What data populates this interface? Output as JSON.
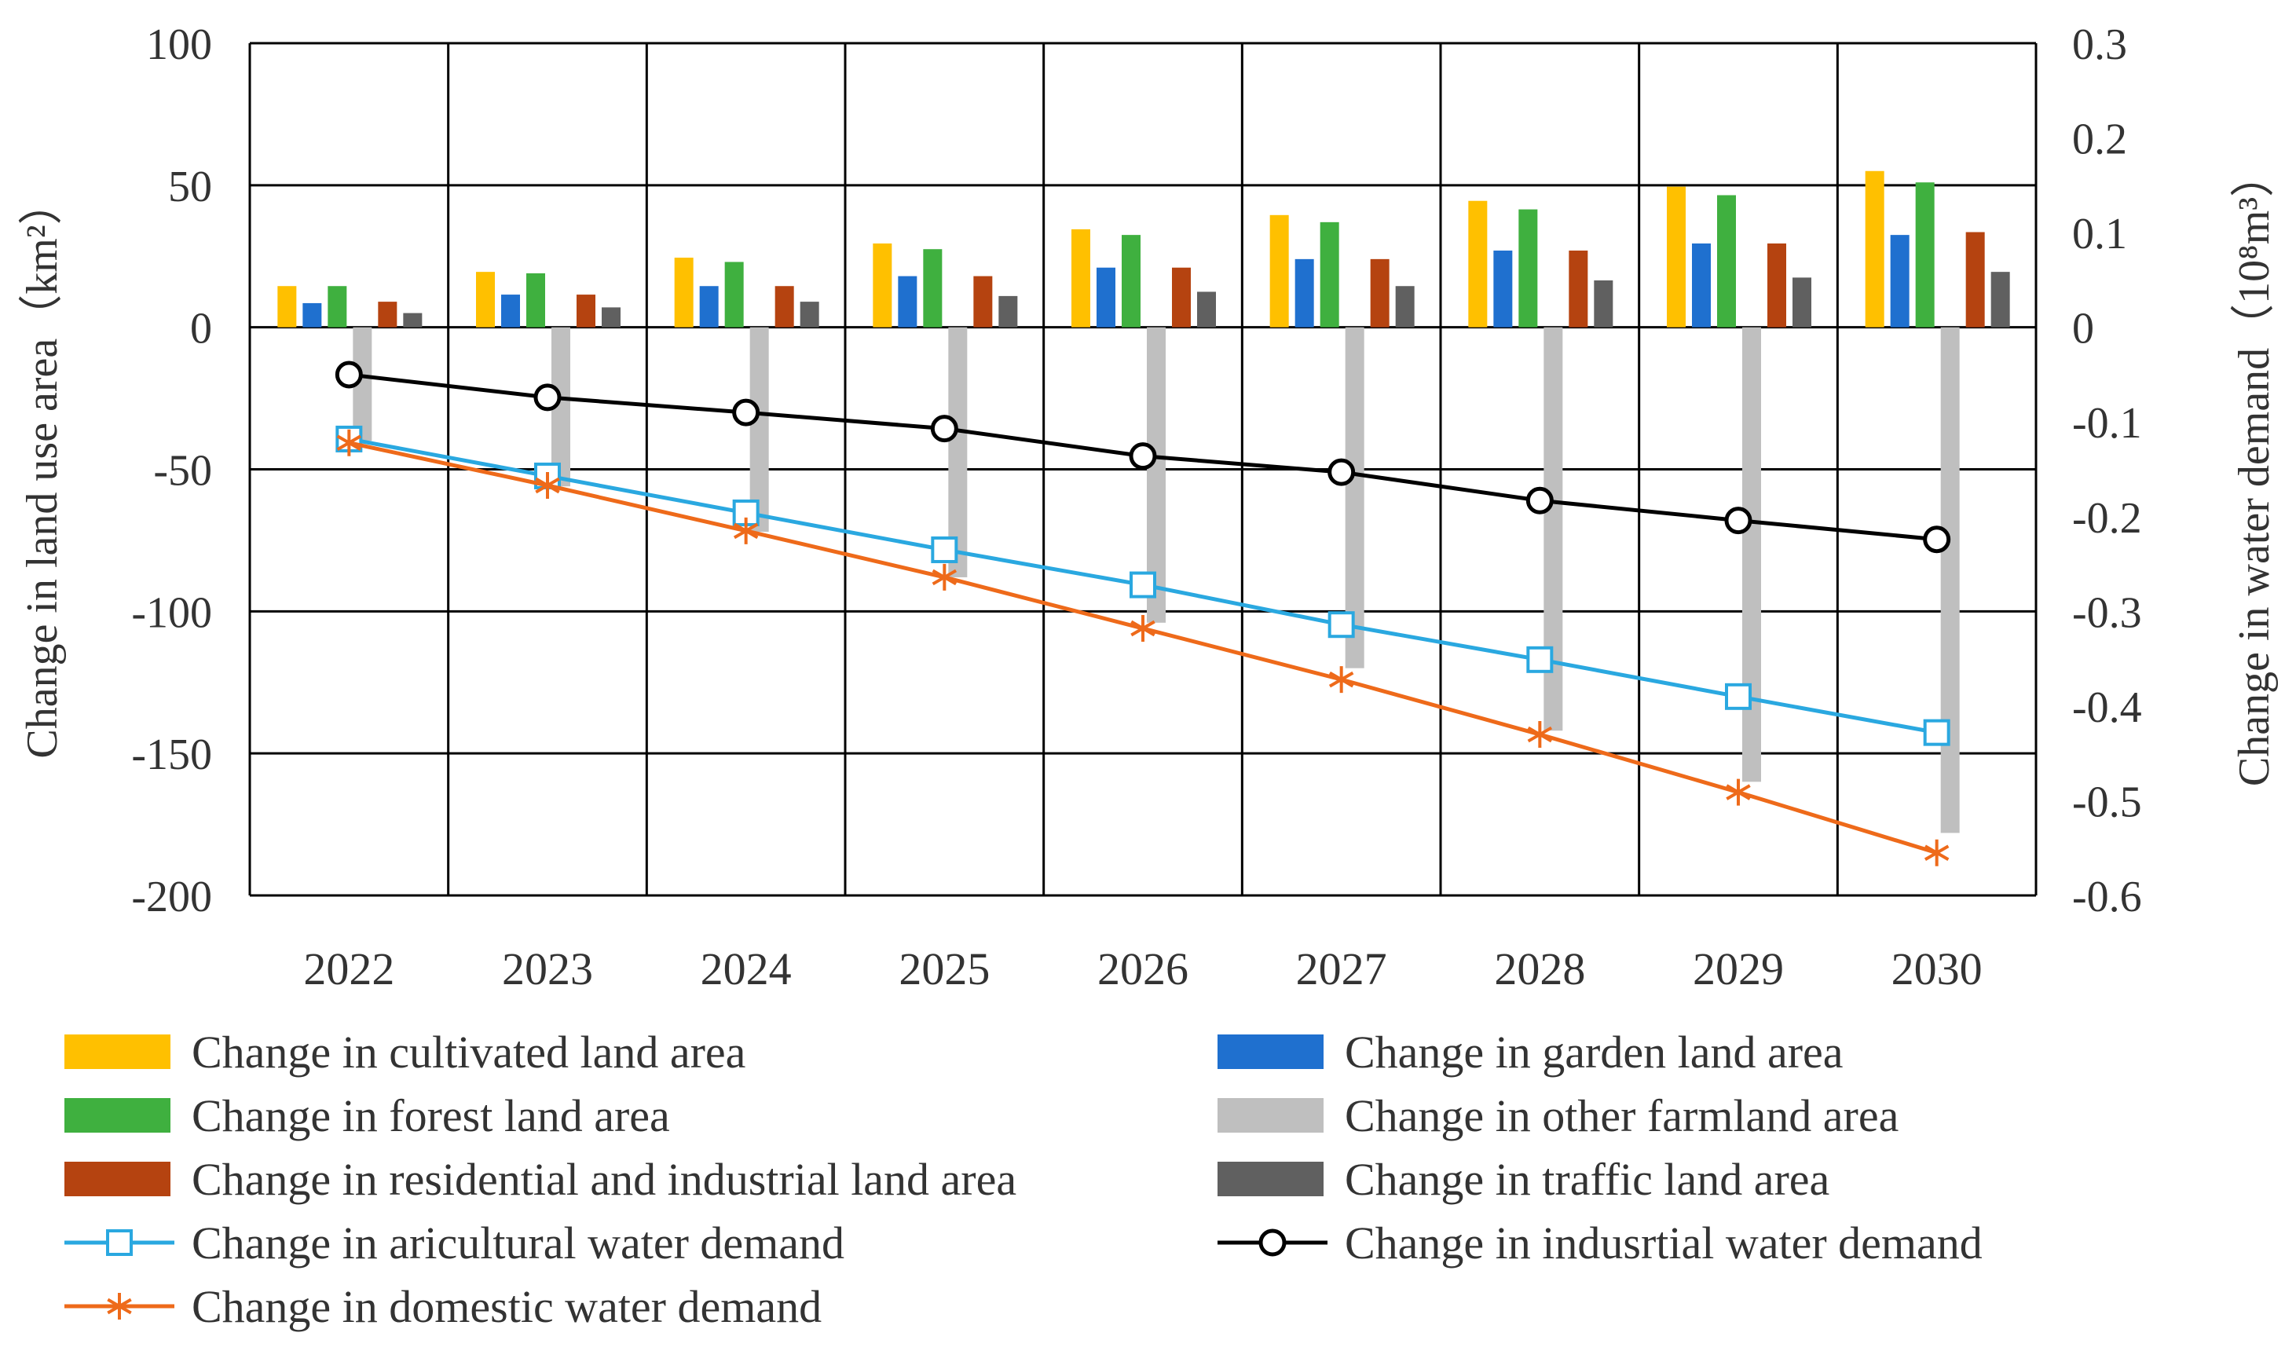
{
  "chart_data": {
    "type": "bar",
    "categories": [
      "2022",
      "2023",
      "2024",
      "2025",
      "2026",
      "2027",
      "2028",
      "2029",
      "2030"
    ],
    "y_left": {
      "label": "Change in land use area（km²）",
      "ylim": [
        -200,
        100
      ],
      "ticks": [
        100,
        50,
        0,
        -50,
        -100,
        -150,
        -200
      ],
      "tick_labels": [
        "100",
        "50",
        "0",
        "-50",
        "-100",
        "-150",
        "-200"
      ]
    },
    "y_right": {
      "label": "Change in water demand（10⁸m³）",
      "ylim": [
        -0.6,
        0.3
      ],
      "ticks": [
        0.3,
        0.2,
        0.1,
        0,
        -0.1,
        -0.2,
        -0.3,
        -0.4,
        -0.5,
        -0.6
      ],
      "tick_labels": [
        "0.3",
        "0.2",
        "0.1",
        "0",
        "-0.1",
        "-0.2",
        "-0.3",
        "-0.4",
        "-0.5",
        "-0.6"
      ]
    },
    "grid": true,
    "bar_series": [
      {
        "name": "Change in cultivated land area",
        "color": "#FFC000",
        "values": [
          14.5,
          19.5,
          24.5,
          29.5,
          34.5,
          39.5,
          44.5,
          49.5,
          55
        ]
      },
      {
        "name": "Change in garden land area",
        "color": "#1F70CF",
        "values": [
          8.5,
          11.5,
          14.5,
          18,
          21,
          24,
          27,
          29.5,
          32.5
        ]
      },
      {
        "name": "Change in forest land area",
        "color": "#3FB03F",
        "values": [
          14.5,
          19,
          23,
          27.5,
          32.5,
          37,
          41.5,
          46.5,
          51
        ]
      },
      {
        "name": "Change in other farmland area",
        "color": "#BFBFBF",
        "values": [
          -40,
          -56,
          -72,
          -88,
          -104,
          -120,
          -142,
          -160,
          -178
        ]
      },
      {
        "name": "Change in residential and industrial land area",
        "color": "#B54310",
        "values": [
          9,
          11.5,
          14.5,
          18,
          21,
          24,
          27,
          29.5,
          33.5
        ]
      },
      {
        "name": "Change in traffic land area",
        "color": "#606060",
        "values": [
          5,
          7,
          9,
          11,
          12.5,
          14.5,
          16.5,
          17.5,
          19.5
        ]
      }
    ],
    "line_series": [
      {
        "name": "Change in aricultural water demand",
        "color": "#2AA8E0",
        "marker": "square",
        "values": [
          -0.118,
          -0.157,
          -0.196,
          -0.235,
          -0.272,
          -0.314,
          -0.351,
          -0.39,
          -0.428
        ]
      },
      {
        "name": "Change in indusrtial water demand",
        "color": "#000000",
        "marker": "circle",
        "values": [
          -0.05,
          -0.074,
          -0.09,
          -0.107,
          -0.136,
          -0.153,
          -0.183,
          -0.204,
          -0.224
        ]
      },
      {
        "name": "Change in domestic water demand",
        "color": "#EE6A1A",
        "marker": "star",
        "values": [
          -0.122,
          -0.167,
          -0.215,
          -0.264,
          -0.318,
          -0.372,
          -0.43,
          -0.491,
          -0.555
        ]
      }
    ],
    "legend": {
      "placement": "bottom",
      "items": [
        {
          "label": "Change in cultivated land area",
          "kind": "bar",
          "color": "#FFC000"
        },
        {
          "label": "Change in garden land area",
          "kind": "bar",
          "color": "#1F70CF"
        },
        {
          "label": "Change in forest land area",
          "kind": "bar",
          "color": "#3FB03F"
        },
        {
          "label": "Change in other farmland area",
          "kind": "bar",
          "color": "#BFBFBF"
        },
        {
          "label": "Change in residential and industrial land area",
          "kind": "bar",
          "color": "#B54310"
        },
        {
          "label": "Change in traffic land area",
          "kind": "bar",
          "color": "#606060"
        },
        {
          "label": "Change in aricultural water demand",
          "kind": "line",
          "marker": "square",
          "color": "#2AA8E0"
        },
        {
          "label": "Change in indusrtial water demand",
          "kind": "line",
          "marker": "circle",
          "color": "#000000"
        },
        {
          "label": "Change in domestic water demand",
          "kind": "line",
          "marker": "star",
          "color": "#EE6A1A"
        }
      ]
    }
  }
}
